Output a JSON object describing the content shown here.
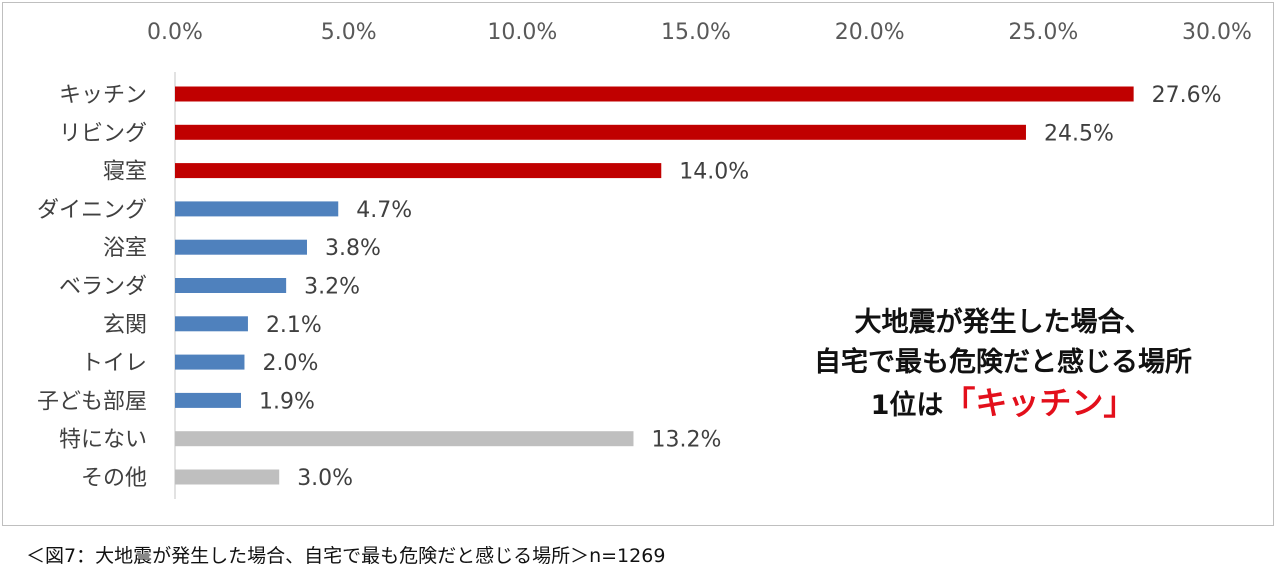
{
  "chart_data": {
    "type": "bar",
    "orientation": "horizontal",
    "categories": [
      "キッチン",
      "リビング",
      "寝室",
      "ダイニング",
      "浴室",
      "ベランダ",
      "玄関",
      "トイレ",
      "子ども部屋",
      "特にない",
      "その他"
    ],
    "values": [
      27.6,
      24.5,
      14.0,
      4.7,
      3.8,
      3.2,
      2.1,
      2.0,
      1.9,
      13.2,
      3.0
    ],
    "value_labels": [
      "27.6%",
      "24.5%",
      "14.0%",
      "4.7%",
      "3.8%",
      "3.2%",
      "2.1%",
      "2.0%",
      "1.9%",
      "13.2%",
      "3.0%"
    ],
    "bar_colors": [
      "#c00000",
      "#c00000",
      "#c00000",
      "#4f81bd",
      "#4f81bd",
      "#4f81bd",
      "#4f81bd",
      "#4f81bd",
      "#4f81bd",
      "#bfbfbf",
      "#bfbfbf"
    ],
    "xlim": [
      0,
      30
    ],
    "x_ticks": [
      0,
      5,
      10,
      15,
      20,
      25,
      30
    ],
    "x_tick_labels": [
      "0.0%",
      "5.0%",
      "10.0%",
      "15.0%",
      "20.0%",
      "25.0%",
      "30.0%"
    ],
    "x_axis_position": "top",
    "grid": false,
    "legend": "none"
  },
  "callout": {
    "line1": "大地震が発生した場合、",
    "line2": "自宅で最も危険だと感じる場所",
    "line3_prefix": "1位は",
    "line3_emphasis": "「キッチン」",
    "emphasis_color": "#e30f1b"
  },
  "caption": "＜図7：大地震が発生した場合、自宅で最も危険だと感じる場所＞n=1269"
}
